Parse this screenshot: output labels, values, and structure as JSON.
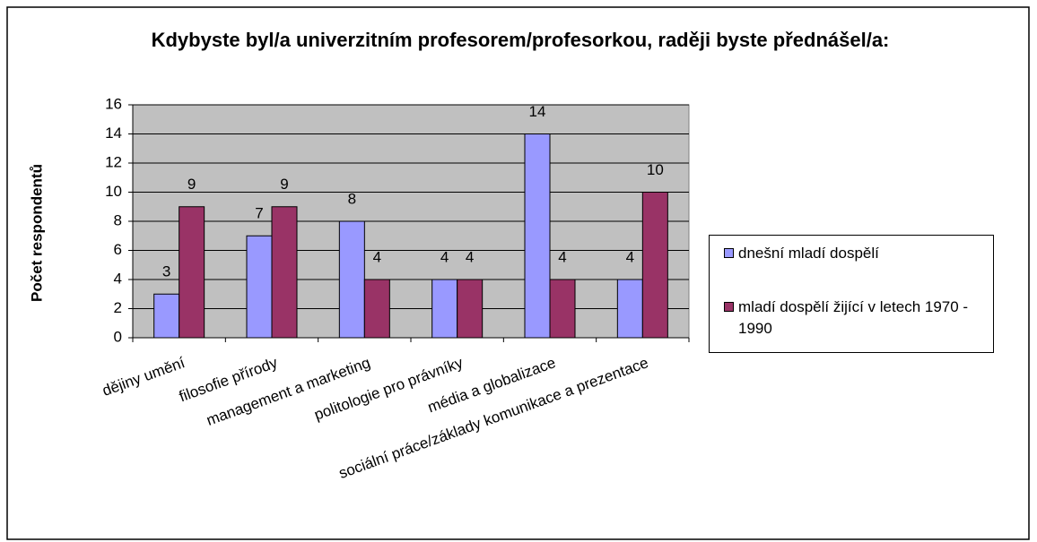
{
  "chart_data": {
    "type": "bar",
    "title": "Kdybyste byl/a univerzitním profesorem/profesorkou, raději byste přednášel/a:",
    "y_label": "Počet respondentů",
    "categories": [
      "dějiny umění",
      "filosofie přírody",
      "management a marketing",
      "politologie pro právníky",
      "média a globalizace",
      "sociální práce/základy komunikace a prezentace"
    ],
    "series": [
      {
        "name": "dnešní mladí dospělí",
        "color": "#9999ff",
        "values": [
          3,
          7,
          8,
          4,
          14,
          4
        ]
      },
      {
        "name": "mladí dospělí žijící v letech 1970 - 1990",
        "color": "#993366",
        "values": [
          9,
          9,
          4,
          4,
          4,
          10
        ]
      }
    ],
    "ylim": [
      0,
      16
    ],
    "yticks": [
      0,
      2,
      4,
      6,
      8,
      10,
      12,
      14,
      16
    ],
    "grid": true,
    "legend": "right"
  }
}
